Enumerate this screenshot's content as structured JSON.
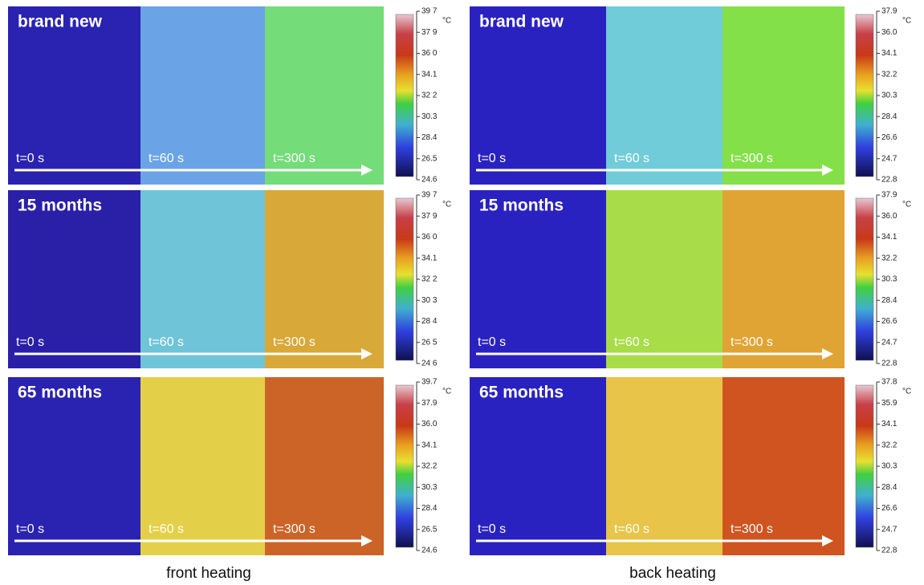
{
  "columns": [
    {
      "caption": "front heating",
      "panels": [
        {
          "label": "brand new",
          "times": [
            "t=0 s",
            "t=60 s",
            "t=300 s"
          ],
          "unit": "°C",
          "ticks": [
            "39 7",
            "37 9",
            "36 0",
            "34.1",
            "32 2",
            "30.3",
            "28.4",
            "26.5",
            "24.6"
          ]
        },
        {
          "label": "15 months",
          "times": [
            "t=0 s",
            "t=60 s",
            "t=300 s"
          ],
          "unit": "°C",
          "ticks": [
            "39 7",
            "37 9",
            "36 0",
            "34.1",
            "32 2",
            "30 3",
            "28 4",
            "26 5",
            "24 6"
          ]
        },
        {
          "label": "65 months",
          "times": [
            "t=0 s",
            "t=60 s",
            "t=300 s"
          ],
          "unit": "°C",
          "ticks": [
            "39.7",
            "37.9",
            "36.0",
            "34.1",
            "32.2",
            "30.3",
            "28.4",
            "26.5",
            "24.6"
          ]
        }
      ]
    },
    {
      "caption": "back heating",
      "panels": [
        {
          "label": "brand new",
          "times": [
            "t=0 s",
            "t=60 s",
            "t=300 s"
          ],
          "unit": "°C",
          "ticks": [
            "37.9",
            "36.0",
            "34.1",
            "32.2",
            "30.3",
            "28.4",
            "26.6",
            "24.7",
            "22.8"
          ]
        },
        {
          "label": "15 months",
          "times": [
            "t=0 s",
            "t=60 s",
            "t=300 s"
          ],
          "unit": "°C",
          "ticks": [
            "37.9",
            "36.0",
            "34.1",
            "32.2",
            "30.3",
            "28.4",
            "26.6",
            "24.7",
            "22.8"
          ]
        },
        {
          "label": "65 months",
          "times": [
            "t=0 s",
            "t=60 s",
            "t=300 s"
          ],
          "unit": "°C",
          "ticks": [
            "37.8",
            "35.9",
            "34.1",
            "32.2",
            "30.3",
            "28.4",
            "26.6",
            "24.7",
            "22.8"
          ]
        }
      ]
    }
  ]
}
